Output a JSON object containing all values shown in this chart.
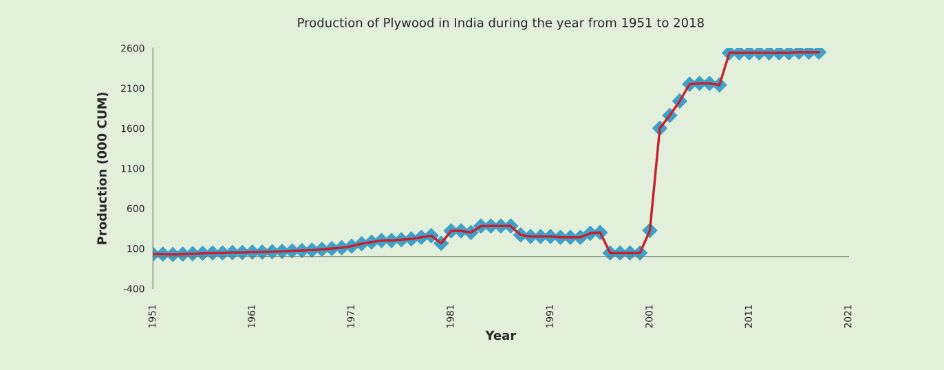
{
  "chart_data": {
    "type": "line",
    "title": "Production of Plywood in India during the year from 1951 to 2018",
    "xlabel": "Year",
    "ylabel": "Production (000 CUM)",
    "x": [
      1951,
      1952,
      1953,
      1954,
      1955,
      1956,
      1957,
      1958,
      1959,
      1960,
      1961,
      1962,
      1963,
      1964,
      1965,
      1966,
      1967,
      1968,
      1969,
      1970,
      1971,
      1972,
      1973,
      1974,
      1975,
      1976,
      1977,
      1978,
      1979,
      1980,
      1981,
      1982,
      1983,
      1984,
      1985,
      1986,
      1987,
      1988,
      1989,
      1990,
      1991,
      1992,
      1993,
      1994,
      1995,
      1996,
      1997,
      1998,
      1999,
      2000,
      2001,
      2002,
      2003,
      2004,
      2005,
      2006,
      2007,
      2008,
      2009,
      2010,
      2011,
      2012,
      2013,
      2014,
      2015,
      2016,
      2017,
      2018
    ],
    "series": [
      {
        "color": "#c8202c",
        "colors": [
          "#3fa0c8",
          "#3fa0c8",
          "#3fa0c8",
          "#3fa0c8",
          "#3fa0c8",
          "#3fa0c8",
          "#3fa0c8",
          "#3fa0c8",
          "#3fa0c8",
          "#3fa0c8",
          "#3fa0c8",
          "#3fa0c8",
          "#3fa0c8",
          "#3fa0c8",
          "#3fa0c8",
          "#3fa0c8",
          "#3fa0c8",
          "#3fa0c8",
          "#3fa0c8",
          "#3fa0c8",
          "#3fa0c8",
          "#3fa0c8",
          "#3fa0c8",
          "#3fa0c8",
          "#3fa0c8",
          "#3fa0c8",
          "#3fa0c8",
          "#3fa0c8",
          "#3fa0c8",
          "#3fa0c8",
          "#3fa0c8",
          "#3fa0c8",
          "#3fa0c8",
          "#3fa0c8",
          "#3fa0c8",
          "#3fa0c8",
          "#3fa0c8",
          "#3fa0c8",
          "#3fa0c8",
          "#3fa0c8",
          "#3fa0c8",
          "#3fa0c8",
          "#3fa0c8",
          "#3fa0c8",
          "#3fa0c8",
          "#3fa0c8",
          "#3fa0c8",
          "#3fa0c8",
          "#3fa0c8",
          "#3fa0c8",
          "#3fa0c8",
          "#3fa0c8",
          "#3fa0c8",
          "#3fa0c8",
          "#3fa0c8",
          "#3fa0c8",
          "#3fa0c8",
          "#3fa0c8",
          "#3fa0c8",
          "#3fa0c8",
          "#3fa0c8",
          "#3fa0c8",
          "#3fa0c8",
          "#3fa0c8",
          "#3fa0c8",
          "#3fa0c8",
          "#3fa0c8",
          "#3fa0c8"
        ],
        "values": [
          30,
          30,
          25,
          30,
          35,
          40,
          45,
          45,
          50,
          50,
          55,
          55,
          60,
          65,
          70,
          75,
          80,
          90,
          100,
          110,
          130,
          160,
          180,
          200,
          200,
          210,
          220,
          240,
          260,
          165,
          320,
          320,
          300,
          380,
          380,
          380,
          380,
          270,
          250,
          250,
          250,
          240,
          240,
          240,
          290,
          300,
          45,
          45,
          45,
          45,
          325,
          1600,
          1760,
          1940,
          2150,
          2160,
          2160,
          2140,
          2540,
          2540,
          2540,
          2540,
          2540,
          2540,
          2540,
          2550,
          2550,
          2550
        ]
      }
    ],
    "xlim": [
      1951,
      2021
    ],
    "xticks": [
      1951,
      1961,
      1971,
      1981,
      1991,
      2001,
      2011,
      2021
    ],
    "ylim": [
      -400,
      2600
    ],
    "yticks": [
      -400,
      100,
      600,
      1100,
      1600,
      2100,
      2600
    ],
    "marker": "diamond",
    "grid": false
  }
}
